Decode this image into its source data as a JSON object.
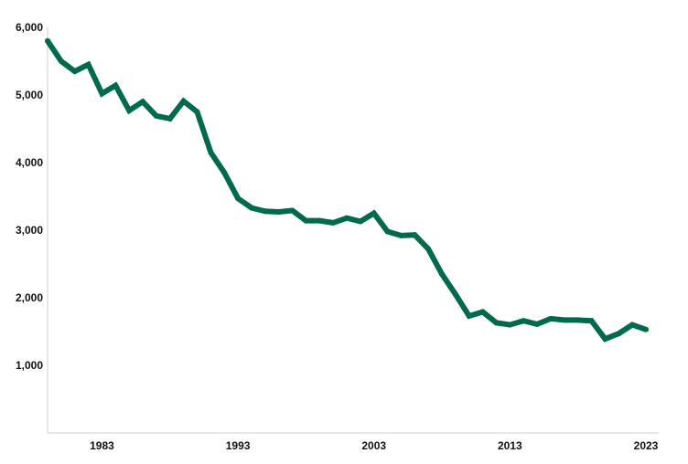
{
  "chart_data": {
    "type": "line",
    "title": "",
    "xlabel": "",
    "ylabel": "",
    "xlim": [
      1979,
      2023
    ],
    "ylim": [
      0,
      6000
    ],
    "grid": false,
    "legend": "none",
    "line_color": "#00694e",
    "x_ticks": [
      {
        "value": 1983,
        "label": "1983"
      },
      {
        "value": 1993,
        "label": "1993"
      },
      {
        "value": 2003,
        "label": "2003"
      },
      {
        "value": 2013,
        "label": "2013"
      },
      {
        "value": 2023,
        "label": "2023"
      }
    ],
    "y_ticks": [
      {
        "value": 1000,
        "label": "1,000"
      },
      {
        "value": 2000,
        "label": "2,000"
      },
      {
        "value": 3000,
        "label": "3,000"
      },
      {
        "value": 4000,
        "label": "4,000"
      },
      {
        "value": 5000,
        "label": "5,000"
      },
      {
        "value": 6000,
        "label": "6,000"
      }
    ],
    "series": [
      {
        "x": [
          1979,
          1980,
          1981,
          1982,
          1983,
          1984,
          1985,
          1986,
          1987,
          1988,
          1989,
          1990,
          1991,
          1992,
          1993,
          1994,
          1995,
          1996,
          1997,
          1998,
          1999,
          2000,
          2001,
          2002,
          2003,
          2004,
          2005,
          2006,
          2007,
          2008,
          2009,
          2010,
          2011,
          2012,
          2013,
          2014,
          2015,
          2016,
          2017,
          2018,
          2019,
          2020,
          2021,
          2022,
          2023
        ],
        "values": [
          5800,
          5500,
          5350,
          5450,
          5020,
          5140,
          4770,
          4900,
          4690,
          4650,
          4910,
          4750,
          4150,
          3850,
          3470,
          3330,
          3280,
          3270,
          3290,
          3140,
          3140,
          3110,
          3180,
          3130,
          3250,
          2980,
          2920,
          2930,
          2720,
          2350,
          2050,
          1730,
          1790,
          1630,
          1600,
          1660,
          1610,
          1690,
          1670,
          1670,
          1660,
          1390,
          1470,
          1600,
          1530
        ]
      }
    ]
  }
}
